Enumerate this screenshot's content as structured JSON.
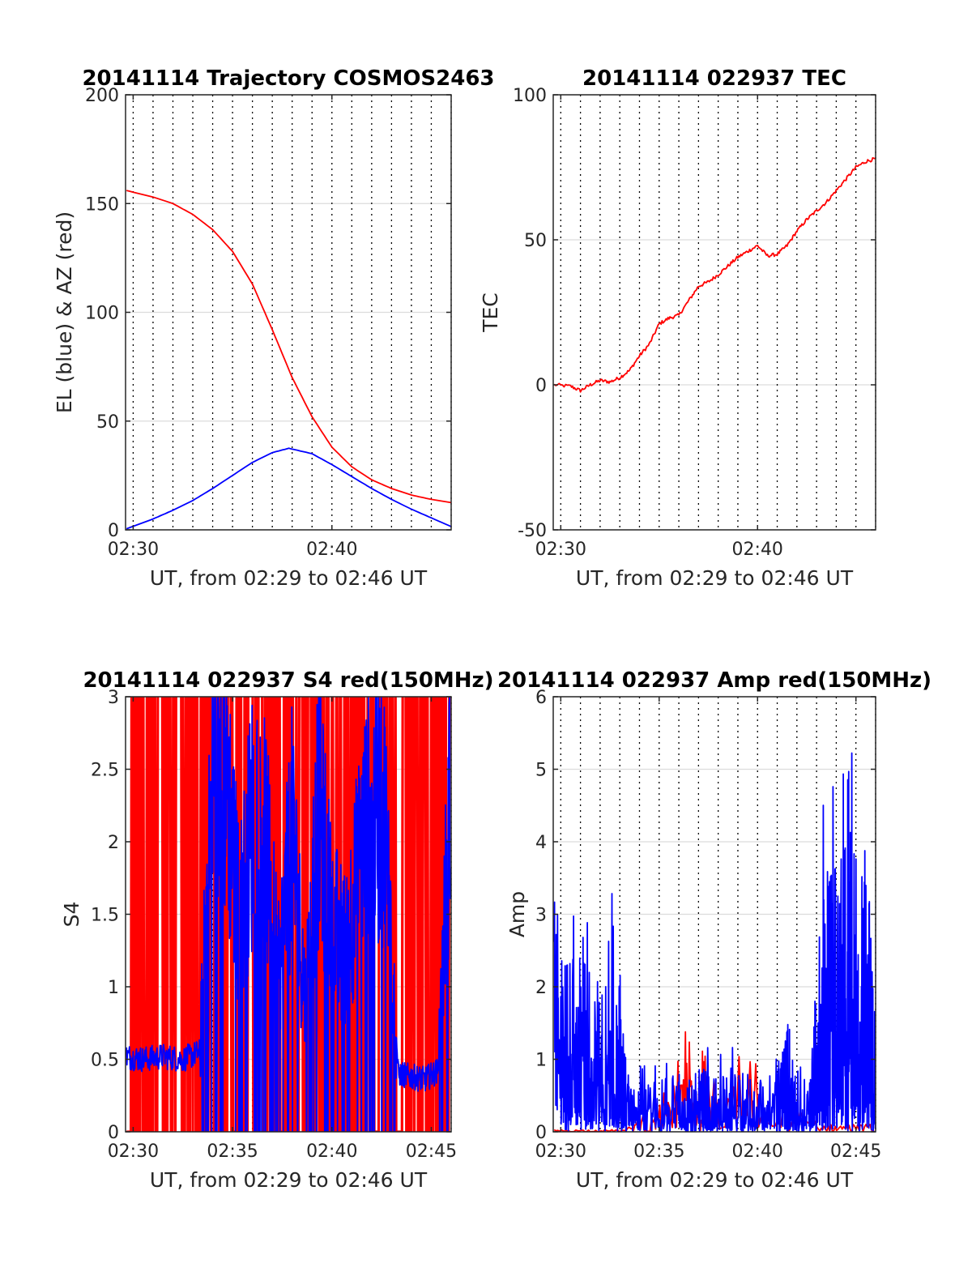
{
  "chart_data": [
    {
      "id": "trajectory",
      "type": "line",
      "title": "20141114 Trajectory COSMOS2463",
      "xlabel": "UT, from 02:29 to 02:46 UT",
      "ylabel": "EL (blue) & AZ (red)",
      "xlim": [
        "02:29:37",
        "02:46:00"
      ],
      "ylim": [
        0,
        200
      ],
      "xticks": [
        "02:30",
        "02:40"
      ],
      "yticks": [
        "0",
        "50",
        "100",
        "150",
        "200"
      ],
      "grid": true,
      "series": [
        {
          "color": "#ff0000",
          "x": [
            "02:29:40",
            "02:31:00",
            "02:32:00",
            "02:33:00",
            "02:34:00",
            "02:35:00",
            "02:36:00",
            "02:37:00",
            "02:38:00",
            "02:39:00",
            "02:40:00",
            "02:41:00",
            "02:42:00",
            "02:43:00",
            "02:44:00",
            "02:45:00",
            "02:46:00"
          ],
          "y": [
            156,
            153,
            150,
            145,
            138,
            128,
            113,
            92,
            70,
            52,
            38,
            29,
            23,
            19,
            16,
            14,
            12.5
          ]
        },
        {
          "color": "#0000ff",
          "x": [
            "02:29:40",
            "02:31:00",
            "02:32:00",
            "02:33:00",
            "02:34:00",
            "02:35:00",
            "02:36:00",
            "02:37:00",
            "02:37:50",
            "02:39:00",
            "02:40:00",
            "02:41:00",
            "02:42:00",
            "02:43:00",
            "02:44:00",
            "02:45:00",
            "02:46:00"
          ],
          "y": [
            0.5,
            5,
            9,
            13.5,
            19,
            25,
            31,
            35.5,
            37.5,
            35,
            30,
            24.5,
            19,
            14,
            9.5,
            5.5,
            1.5
          ]
        }
      ]
    },
    {
      "id": "tec",
      "type": "line",
      "title": "20141114 022937 TEC",
      "xlabel": "UT, from 02:29 to 02:46 UT",
      "ylabel": "TEC",
      "xlim": [
        "02:29:37",
        "02:46:00"
      ],
      "ylim": [
        -50,
        100
      ],
      "xticks": [
        "02:30",
        "02:40"
      ],
      "yticks": [
        "-50",
        "0",
        "50",
        "100"
      ],
      "grid": true,
      "series": [
        {
          "color": "#ff0000",
          "x": [
            "02:29:40",
            "02:30:30",
            "02:31:00",
            "02:31:30",
            "02:32:00",
            "02:32:30",
            "02:33:00",
            "02:33:30",
            "02:34:00",
            "02:34:30",
            "02:35:00",
            "02:35:30",
            "02:36:00",
            "02:36:30",
            "02:37:00",
            "02:37:30",
            "02:38:00",
            "02:38:30",
            "02:39:00",
            "02:39:30",
            "02:40:00",
            "02:40:30",
            "02:41:00",
            "02:41:30",
            "02:42:00",
            "02:42:30",
            "02:43:00",
            "02:43:30",
            "02:44:00",
            "02:44:30",
            "02:45:00",
            "02:45:30",
            "02:46:00"
          ],
          "y": [
            0,
            -0.5,
            -2,
            0,
            1.5,
            1,
            2.5,
            5,
            10,
            14,
            21,
            23,
            24,
            29,
            34,
            35.5,
            38,
            41,
            44,
            46,
            48,
            44.5,
            45,
            48,
            53,
            57,
            60,
            63,
            67,
            71,
            75,
            77,
            78
          ]
        }
      ]
    },
    {
      "id": "s4",
      "type": "line",
      "title": "20141114 022937 S4 red(150MHz)",
      "xlabel": "UT, from 02:29 to 02:46 UT",
      "ylabel": "S4",
      "xlim": [
        "02:29:37",
        "02:46:00"
      ],
      "ylim": [
        0,
        3
      ],
      "xticks": [
        "02:30",
        "02:35",
        "02:40",
        "02:45"
      ],
      "yticks": [
        "0",
        "0.5",
        "1",
        "1.5",
        "2",
        "2.5",
        "3"
      ],
      "grid": true,
      "series": [
        {
          "color": "#ff0000",
          "x_range": [
            "02:29:40",
            "02:46:00"
          ],
          "y_range": [
            0,
            3
          ],
          "level": 1.5
        },
        {
          "color": "#0000ff",
          "x": [
            "02:29:40",
            "02:30:30",
            "02:31:30",
            "02:32:30",
            "02:33:20",
            "02:34:00",
            "02:34:40",
            "02:35:20",
            "02:36:00",
            "02:36:40",
            "02:37:20",
            "02:38:00",
            "02:38:40",
            "02:39:20",
            "02:40:00",
            "02:40:40",
            "02:41:20",
            "02:42:00",
            "02:42:40",
            "02:43:20",
            "02:44:00",
            "02:44:40",
            "02:45:20",
            "02:46:00"
          ],
          "y": [
            0.52,
            0.5,
            0.52,
            0.5,
            0.55,
            2.7,
            2.8,
            1.6,
            2.4,
            2.2,
            1.2,
            2.3,
            1.0,
            2.5,
            1.6,
            1.4,
            2.0,
            2.6,
            2.4,
            0.4,
            0.38,
            0.36,
            0.42,
            2.8
          ]
        }
      ]
    },
    {
      "id": "amp",
      "type": "line",
      "title": "20141114 022937 Amp red(150MHz)",
      "xlabel": "UT, from 02:29 to 02:46 UT",
      "ylabel": "Amp",
      "xlim": [
        "02:29:37",
        "02:46:00"
      ],
      "ylim": [
        0,
        6
      ],
      "xticks": [
        "02:30",
        "02:35",
        "02:40",
        "02:45"
      ],
      "yticks": [
        "0",
        "1",
        "2",
        "3",
        "4",
        "5",
        "6"
      ],
      "grid": true,
      "series": [
        {
          "color": "#ff0000",
          "x": [
            "02:29:40",
            "02:33:20",
            "02:36:10",
            "02:37:30",
            "02:43:10",
            "02:46:00"
          ],
          "y": [
            0.03,
            0.03,
            0.9,
            1.15,
            0.1,
            0.1
          ]
        },
        {
          "color": "#0000ff",
          "x": [
            "02:29:40",
            "02:30:20",
            "02:31:00",
            "02:31:40",
            "02:32:20",
            "02:33:00",
            "02:33:20",
            "02:34:00",
            "02:35:00",
            "02:36:00",
            "02:36:40",
            "02:37:20",
            "02:38:00",
            "02:39:00",
            "02:40:00",
            "02:41:00",
            "02:41:30",
            "02:42:00",
            "02:42:40",
            "02:43:10",
            "02:43:40",
            "02:44:20",
            "02:44:40",
            "02:45:10",
            "02:45:40",
            "02:46:00"
          ],
          "y": [
            2.2,
            2.3,
            2.4,
            2.1,
            2.4,
            2.2,
            0.6,
            0.7,
            0.7,
            0.8,
            0.5,
            0.9,
            0.7,
            0.8,
            0.6,
            1.0,
            1.55,
            0.6,
            0.6,
            3.0,
            3.5,
            3.8,
            4.1,
            3.6,
            3.3,
            1.0
          ]
        }
      ]
    }
  ]
}
